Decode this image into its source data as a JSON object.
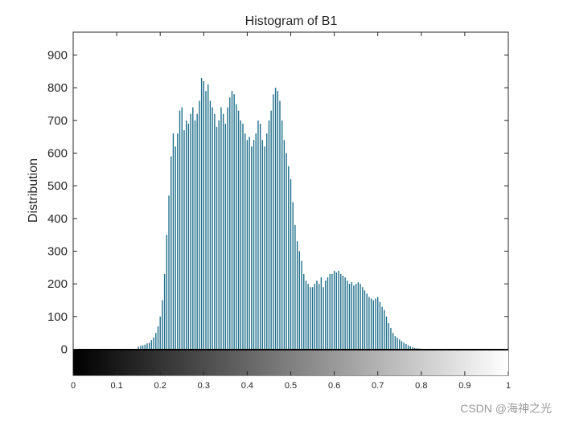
{
  "chart_data": {
    "type": "bar",
    "title": "Histogram of B1",
    "xlabel": "",
    "ylabel": "Distribution",
    "xlim": [
      0,
      1
    ],
    "ylim": [
      -80,
      970
    ],
    "yticks": [
      0,
      100,
      200,
      300,
      400,
      500,
      600,
      700,
      800,
      900
    ],
    "xticks": [
      0,
      0.1,
      0.2,
      0.3,
      0.4,
      0.5,
      0.6,
      0.7,
      0.8,
      0.9,
      1
    ],
    "ytick_labels": [
      "0",
      "100",
      "200",
      "300",
      "400",
      "500",
      "600",
      "700",
      "800",
      "900"
    ],
    "xtick_labels": [
      "0",
      "0.1",
      "0.2",
      "0.3",
      "0.4",
      "0.5",
      "0.6",
      "0.7",
      "0.8",
      "0.9",
      "1"
    ],
    "colorbar": "grayscale",
    "bar_color": "#1f6f8b",
    "grid": false,
    "series": [
      {
        "values": [
          [
            0.15,
            8
          ],
          [
            0.155,
            10
          ],
          [
            0.16,
            12
          ],
          [
            0.165,
            14
          ],
          [
            0.17,
            18
          ],
          [
            0.175,
            20
          ],
          [
            0.18,
            28
          ],
          [
            0.185,
            36
          ],
          [
            0.19,
            50
          ],
          [
            0.195,
            70
          ],
          [
            0.2,
            100
          ],
          [
            0.205,
            150
          ],
          [
            0.21,
            230
          ],
          [
            0.215,
            350
          ],
          [
            0.22,
            470
          ],
          [
            0.225,
            590
          ],
          [
            0.23,
            660
          ],
          [
            0.235,
            620
          ],
          [
            0.24,
            660
          ],
          [
            0.245,
            730
          ],
          [
            0.25,
            740
          ],
          [
            0.255,
            670
          ],
          [
            0.26,
            700
          ],
          [
            0.265,
            690
          ],
          [
            0.27,
            720
          ],
          [
            0.275,
            740
          ],
          [
            0.28,
            700
          ],
          [
            0.285,
            720
          ],
          [
            0.29,
            760
          ],
          [
            0.295,
            830
          ],
          [
            0.3,
            820
          ],
          [
            0.305,
            790
          ],
          [
            0.31,
            810
          ],
          [
            0.315,
            760
          ],
          [
            0.32,
            740
          ],
          [
            0.325,
            720
          ],
          [
            0.33,
            680
          ],
          [
            0.335,
            700
          ],
          [
            0.34,
            740
          ],
          [
            0.345,
            720
          ],
          [
            0.35,
            690
          ],
          [
            0.355,
            740
          ],
          [
            0.36,
            770
          ],
          [
            0.365,
            790
          ],
          [
            0.37,
            780
          ],
          [
            0.375,
            750
          ],
          [
            0.38,
            730
          ],
          [
            0.385,
            700
          ],
          [
            0.39,
            690
          ],
          [
            0.395,
            660
          ],
          [
            0.4,
            640
          ],
          [
            0.405,
            650
          ],
          [
            0.41,
            620
          ],
          [
            0.415,
            640
          ],
          [
            0.42,
            660
          ],
          [
            0.425,
            700
          ],
          [
            0.43,
            690
          ],
          [
            0.435,
            640
          ],
          [
            0.44,
            620
          ],
          [
            0.445,
            660
          ],
          [
            0.45,
            700
          ],
          [
            0.455,
            730
          ],
          [
            0.46,
            780
          ],
          [
            0.465,
            800
          ],
          [
            0.47,
            790
          ],
          [
            0.475,
            760
          ],
          [
            0.48,
            700
          ],
          [
            0.485,
            640
          ],
          [
            0.49,
            600
          ],
          [
            0.495,
            560
          ],
          [
            0.5,
            520
          ],
          [
            0.505,
            450
          ],
          [
            0.51,
            380
          ],
          [
            0.515,
            330
          ],
          [
            0.52,
            300
          ],
          [
            0.525,
            270
          ],
          [
            0.53,
            230
          ],
          [
            0.535,
            210
          ],
          [
            0.54,
            200
          ],
          [
            0.545,
            190
          ],
          [
            0.55,
            190
          ],
          [
            0.555,
            200
          ],
          [
            0.56,
            210
          ],
          [
            0.565,
            200
          ],
          [
            0.57,
            220
          ],
          [
            0.575,
            190
          ],
          [
            0.58,
            210
          ],
          [
            0.585,
            220
          ],
          [
            0.59,
            230
          ],
          [
            0.595,
            230
          ],
          [
            0.6,
            240
          ],
          [
            0.605,
            235
          ],
          [
            0.61,
            240
          ],
          [
            0.615,
            230
          ],
          [
            0.62,
            225
          ],
          [
            0.625,
            220
          ],
          [
            0.63,
            210
          ],
          [
            0.635,
            200
          ],
          [
            0.64,
            205
          ],
          [
            0.645,
            195
          ],
          [
            0.65,
            200
          ],
          [
            0.655,
            205
          ],
          [
            0.66,
            200
          ],
          [
            0.665,
            190
          ],
          [
            0.67,
            180
          ],
          [
            0.675,
            170
          ],
          [
            0.68,
            160
          ],
          [
            0.685,
            155
          ],
          [
            0.69,
            150
          ],
          [
            0.695,
            155
          ],
          [
            0.7,
            160
          ],
          [
            0.705,
            145
          ],
          [
            0.71,
            130
          ],
          [
            0.715,
            120
          ],
          [
            0.72,
            100
          ],
          [
            0.725,
            80
          ],
          [
            0.73,
            65
          ],
          [
            0.735,
            50
          ],
          [
            0.74,
            40
          ],
          [
            0.745,
            35
          ],
          [
            0.75,
            30
          ],
          [
            0.755,
            25
          ],
          [
            0.76,
            20
          ],
          [
            0.765,
            16
          ],
          [
            0.77,
            12
          ],
          [
            0.775,
            9
          ],
          [
            0.78,
            6
          ],
          [
            0.785,
            4
          ],
          [
            0.79,
            3
          ],
          [
            0.795,
            2
          ]
        ]
      }
    ]
  },
  "watermark": "CSDN @海神之光"
}
